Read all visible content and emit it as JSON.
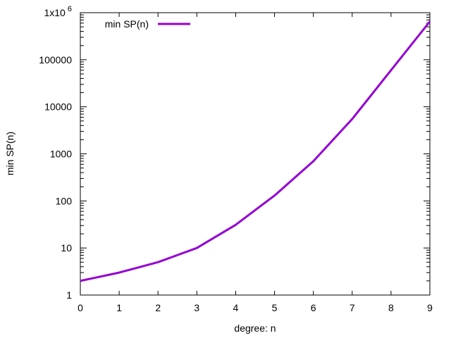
{
  "chart_data": {
    "type": "line",
    "title": "",
    "xlabel": "degree: n",
    "ylabel": "min SP(n)",
    "xlim": [
      0,
      9
    ],
    "ylim": [
      1,
      1000000
    ],
    "y_scale": "log",
    "grid": false,
    "legend_position": "top-left",
    "x_ticks": [
      0,
      1,
      2,
      3,
      4,
      5,
      6,
      7,
      8,
      9
    ],
    "x_tick_labels": [
      "0",
      "1",
      "2",
      "3",
      "4",
      "5",
      "6",
      "7",
      "8",
      "9"
    ],
    "y_ticks": [
      1,
      10,
      100,
      1000,
      10000,
      100000,
      1000000
    ],
    "y_tick_labels": [
      "1",
      "10",
      "100",
      "1000",
      "10000",
      "100000",
      "1x10"
    ],
    "y_top_exponent": "6",
    "series": [
      {
        "name": "min SP(n)",
        "color": "#9400d3",
        "x": [
          0,
          1,
          2,
          3,
          4,
          5,
          6,
          7,
          8,
          9
        ],
        "y": [
          2,
          3,
          5,
          10,
          31,
          130,
          700,
          5500,
          60000,
          650000
        ]
      }
    ]
  }
}
